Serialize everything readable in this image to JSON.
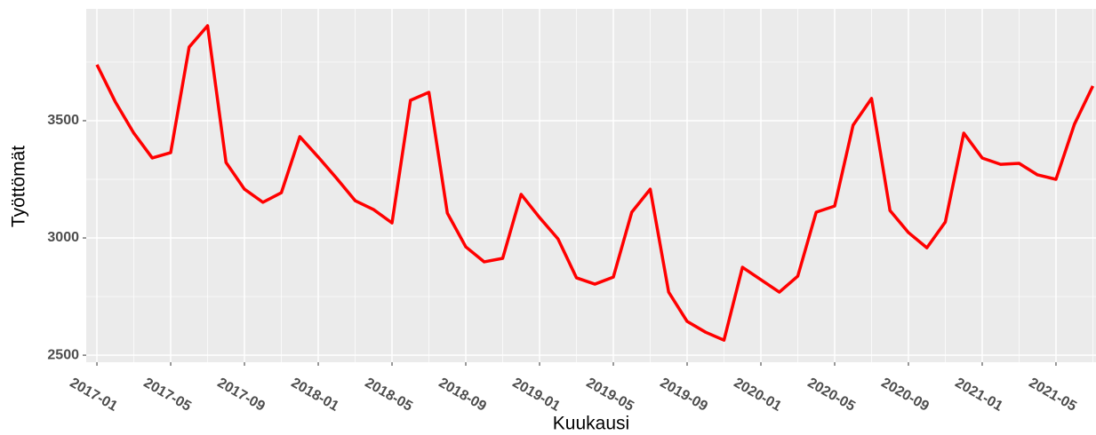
{
  "chart_data": {
    "type": "line",
    "x_label": "Kuukausi",
    "y_label": "Työttömät",
    "categories": [
      "2017-01",
      null,
      null,
      null,
      "2017-05",
      null,
      null,
      null,
      "2017-09",
      null,
      null,
      null,
      "2018-01",
      null,
      null,
      null,
      "2018-05",
      null,
      null,
      null,
      "2018-09",
      null,
      null,
      null,
      "2019-01",
      null,
      null,
      null,
      "2019-05",
      null,
      null,
      null,
      "2019-09",
      null,
      null,
      null,
      "2020-01",
      null,
      null,
      null,
      "2020-05",
      null,
      null,
      null,
      "2020-09",
      null,
      null,
      null,
      "2021-01",
      null,
      null,
      null,
      "2021-05",
      null,
      null
    ],
    "series": [
      {
        "name": "Työttömät",
        "color": "#ff0000",
        "values": [
          3739,
          3580,
          3447,
          3341,
          3364,
          3814,
          3905,
          3322,
          3208,
          3152,
          3193,
          3432,
          3345,
          3254,
          3159,
          3121,
          3064,
          3587,
          3621,
          3106,
          2962,
          2898,
          2913,
          3186,
          3087,
          2996,
          2830,
          2803,
          2833,
          3110,
          3208,
          2769,
          2644,
          2598,
          2564,
          2875,
          2822,
          2769,
          2837,
          3110,
          3136,
          3481,
          3595,
          3117,
          3023,
          2958,
          3068,
          3447,
          3341,
          3314,
          3318,
          3269,
          3250,
          3485,
          3648
        ]
      }
    ],
    "ylim": [
      2470,
      3977
    ],
    "yticks": [
      2500,
      3000,
      3500
    ],
    "grid": true
  }
}
